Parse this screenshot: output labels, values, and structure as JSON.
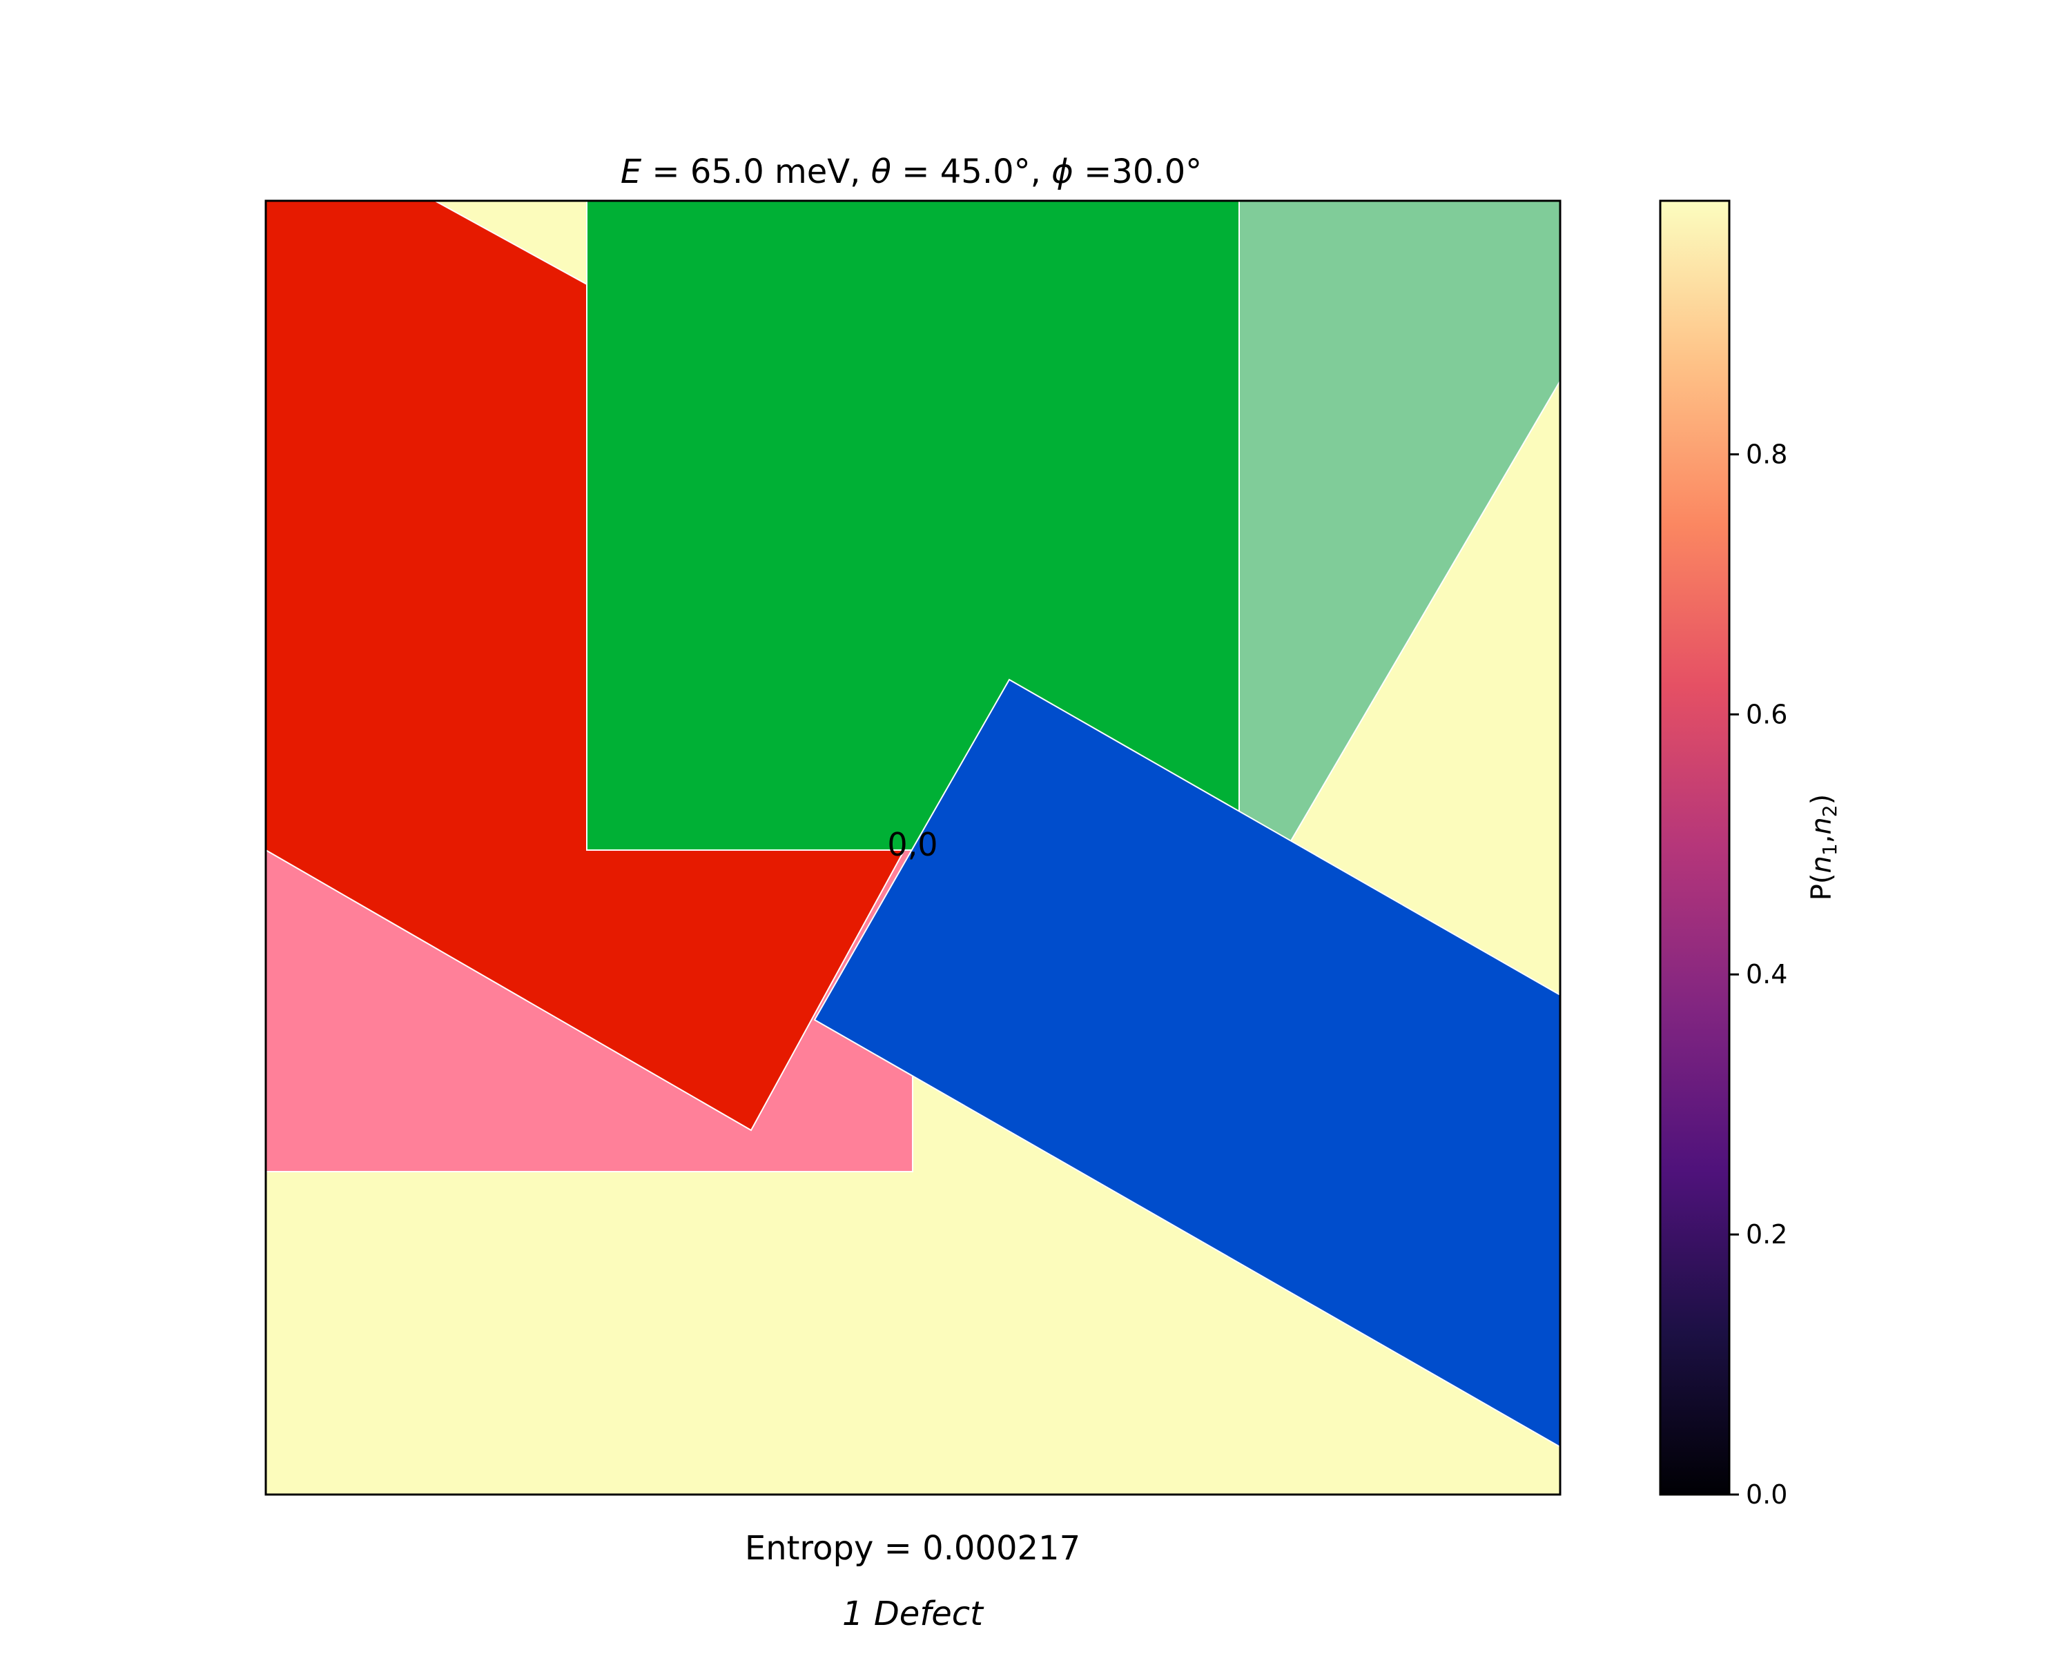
{
  "chart_data": {
    "type": "heatmap",
    "title": {
      "prefix": "E",
      "energy": " = 65.0 meV, ",
      "theta_symbol": "θ",
      "theta": " = 45.0°, ",
      "phi_symbol": "ϕ",
      "phi": " =30.0°"
    },
    "xlabel": "Entropy = 0.000217",
    "footer": "1 Defect",
    "origin_label": "0,0",
    "background_color": "#fcfcbc",
    "regions": [
      {
        "name": "light-green-region",
        "color": "#80cc99",
        "polygon": [
          [
            -0.5,
            0
          ],
          [
            0.5,
            0
          ],
          [
            0.5,
            0.729
          ],
          [
            -0.5,
            -0.0
          ]
        ]
      },
      {
        "name": "green-region",
        "color": "#00b035",
        "polygon": [
          [
            -1.5,
            0
          ],
          [
            -0.5,
            0
          ],
          [
            -0.5,
            1
          ],
          [
            -1.5,
            1
          ]
        ]
      },
      {
        "name": "pink-region",
        "color": "#ff8099",
        "polygon": [
          [
            -1,
            0
          ],
          [
            -2.5,
            0
          ],
          [
            -2.5,
            -0.5
          ],
          [
            -1,
            -0.5
          ]
        ]
      },
      {
        "name": "red-region",
        "color": "#e61a00",
        "polygon": [
          [
            -2.5,
            1
          ],
          [
            -2.25,
            1
          ],
          [
            -1.5,
            0.868
          ],
          [
            -1.5,
            0
          ],
          [
            -1.0,
            0
          ],
          [
            -1.25,
            -0.433
          ],
          [
            -2.5,
            0.0
          ]
        ]
      },
      {
        "name": "blue-region",
        "color": "#004dcc",
        "polygon": [
          [
            -1.15,
            -0.26
          ],
          [
            -0.85,
            0.26
          ],
          [
            0.75,
            -0.24
          ],
          [
            0.75,
            -0.94
          ]
        ]
      }
    ],
    "colorbar": {
      "label": "P(n1,n2)",
      "label_parts": {
        "p": "P(",
        "n1": "n",
        "sub1": "1",
        "comma": ",",
        "n2": "n",
        "sub2": "2",
        "close": ")"
      },
      "ticks": [
        "0.0",
        "0.2",
        "0.4",
        "0.6",
        "0.8"
      ],
      "range": [
        0,
        0.995
      ],
      "colormap": "magma",
      "stops": [
        "#000004",
        "#1c1044",
        "#4f127b",
        "#812581",
        "#b5367a",
        "#e55064",
        "#fb8761",
        "#fec287",
        "#fcfdbf"
      ]
    }
  }
}
